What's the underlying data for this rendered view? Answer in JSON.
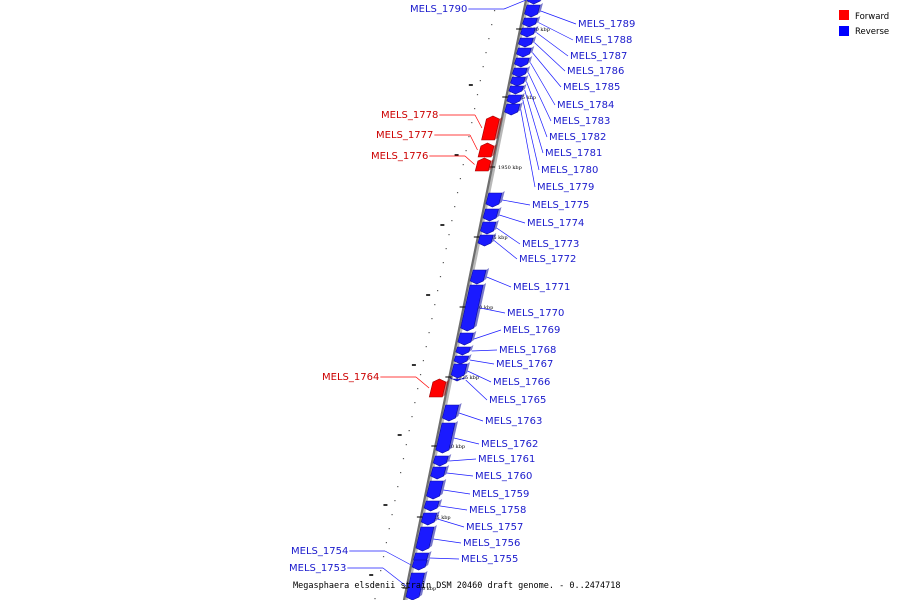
{
  "caption": "Megasphaera elsdenii strain DSM 20460 draft genome. - 0..2474718",
  "legend": [
    {
      "label": "Forward",
      "color": "#ff0000"
    },
    {
      "label": "Reverse",
      "color": "#0000ff"
    }
  ],
  "colors": {
    "forward": "#ff0000",
    "reverse": "#1a1aff",
    "label_forward": "#cc0000",
    "label_reverse": "#1a1acc"
  },
  "ticks": [
    "1960 kbp",
    "1955 kbp",
    "1950 kbp",
    "1945 kbp",
    "1940 kbp",
    "1935 kbp",
    "1930 kbp",
    "1925 kbp",
    "1920 kbp"
  ],
  "genes": [
    {
      "name": "MELS_1790",
      "strand": "reverse"
    },
    {
      "name": "MELS_1789",
      "strand": "reverse"
    },
    {
      "name": "MELS_1788",
      "strand": "reverse"
    },
    {
      "name": "MELS_1787",
      "strand": "reverse"
    },
    {
      "name": "MELS_1786",
      "strand": "reverse"
    },
    {
      "name": "MELS_1785",
      "strand": "reverse"
    },
    {
      "name": "MELS_1784",
      "strand": "reverse"
    },
    {
      "name": "MELS_1783",
      "strand": "reverse"
    },
    {
      "name": "MELS_1782",
      "strand": "reverse"
    },
    {
      "name": "MELS_1781",
      "strand": "reverse"
    },
    {
      "name": "MELS_1780",
      "strand": "reverse"
    },
    {
      "name": "MELS_1779",
      "strand": "reverse"
    },
    {
      "name": "MELS_1778",
      "strand": "forward"
    },
    {
      "name": "MELS_1777",
      "strand": "forward"
    },
    {
      "name": "MELS_1776",
      "strand": "forward"
    },
    {
      "name": "MELS_1775",
      "strand": "reverse"
    },
    {
      "name": "MELS_1774",
      "strand": "reverse"
    },
    {
      "name": "MELS_1773",
      "strand": "reverse"
    },
    {
      "name": "MELS_1772",
      "strand": "reverse"
    },
    {
      "name": "MELS_1771",
      "strand": "reverse"
    },
    {
      "name": "MELS_1770",
      "strand": "reverse"
    },
    {
      "name": "MELS_1769",
      "strand": "reverse"
    },
    {
      "name": "MELS_1768",
      "strand": "reverse"
    },
    {
      "name": "MELS_1767",
      "strand": "reverse"
    },
    {
      "name": "MELS_1766",
      "strand": "reverse"
    },
    {
      "name": "MELS_1765",
      "strand": "reverse"
    },
    {
      "name": "MELS_1764",
      "strand": "forward"
    },
    {
      "name": "MELS_1763",
      "strand": "reverse"
    },
    {
      "name": "MELS_1762",
      "strand": "reverse"
    },
    {
      "name": "MELS_1761",
      "strand": "reverse"
    },
    {
      "name": "MELS_1760",
      "strand": "reverse"
    },
    {
      "name": "MELS_1759",
      "strand": "reverse"
    },
    {
      "name": "MELS_1758",
      "strand": "reverse"
    },
    {
      "name": "MELS_1757",
      "strand": "reverse"
    },
    {
      "name": "MELS_1756",
      "strand": "reverse"
    },
    {
      "name": "MELS_1755",
      "strand": "reverse"
    },
    {
      "name": "MELS_1754",
      "strand": "reverse"
    },
    {
      "name": "MELS_1753",
      "strand": "reverse"
    }
  ]
}
